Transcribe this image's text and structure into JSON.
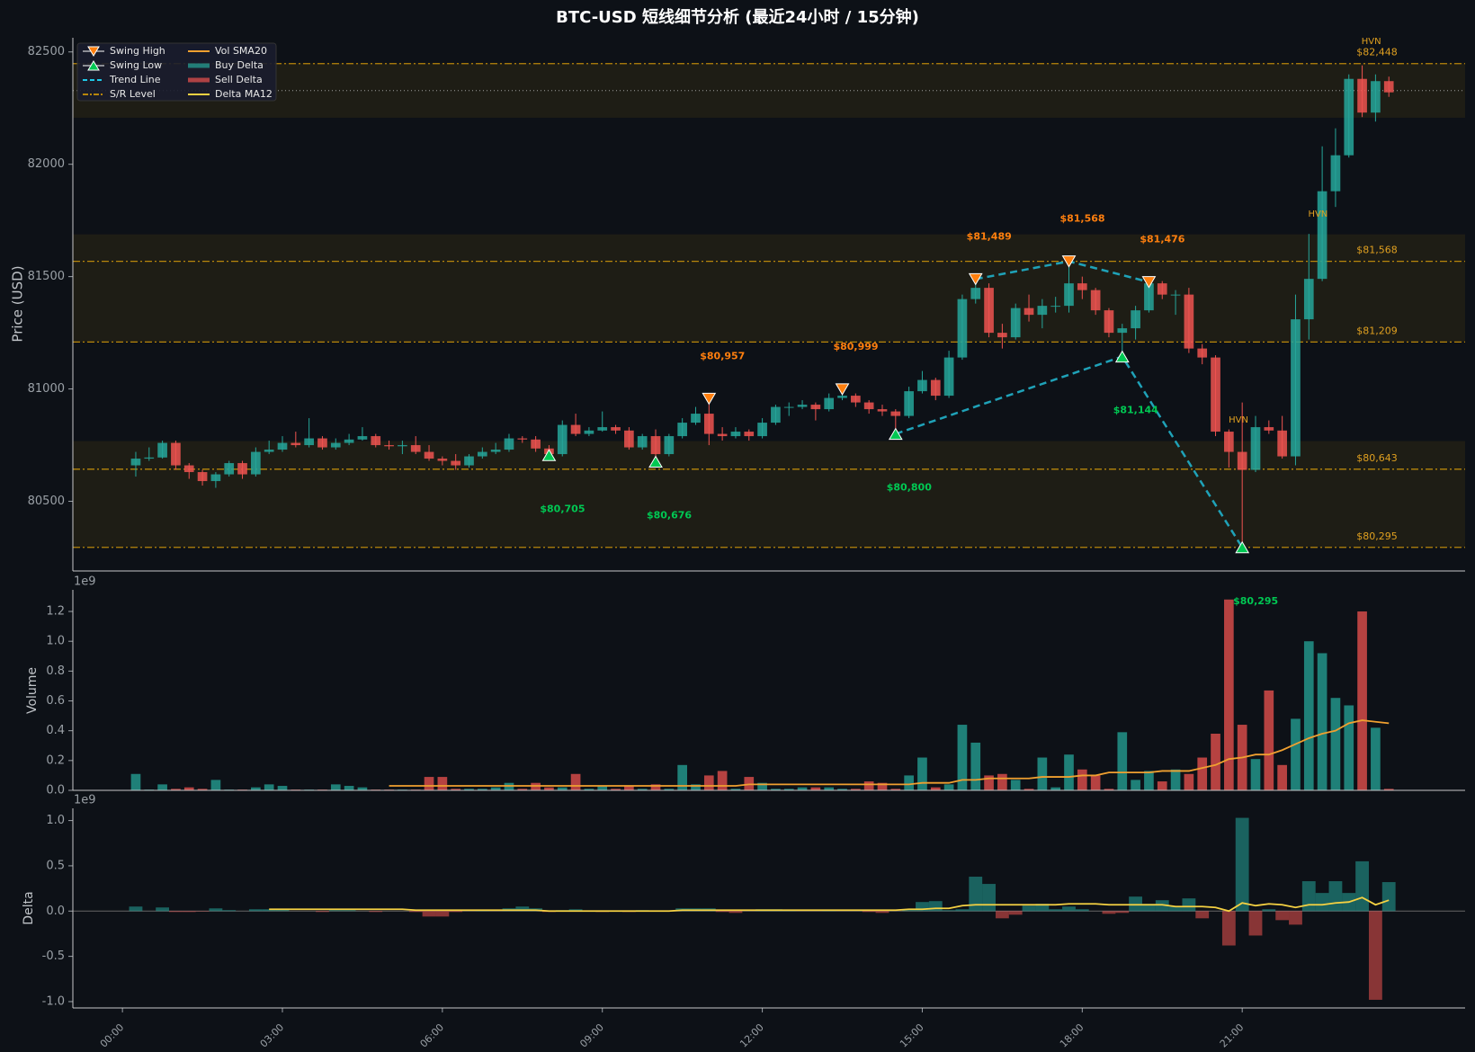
{
  "chart_data": {
    "type": "candlestick",
    "title": "BTC-USD 短线细节分析 (最近24小时 / 15分钟)",
    "ylabel": "Price (USD)",
    "vol_label": "Volume",
    "delta_label": "Delta",
    "vol_offset": "1e9",
    "delta_offset": "1e9",
    "xlim": [
      -0.93,
      25.18
    ],
    "xticks": [
      {
        "value": 0,
        "label": "00:00"
      },
      {
        "value": 3,
        "label": "03:00"
      },
      {
        "value": 6,
        "label": "06:00"
      },
      {
        "value": 9,
        "label": "09:00"
      },
      {
        "value": 12,
        "label": "12:00"
      },
      {
        "value": 15,
        "label": "15:00"
      },
      {
        "value": 18,
        "label": "18:00"
      },
      {
        "value": 21,
        "label": "21:00"
      }
    ],
    "ylim": [
      80190,
      82563
    ],
    "yticks": [
      80500,
      81000,
      81500,
      82000,
      82500
    ],
    "vol_ylim": [
      0,
      1.345
    ],
    "vol_yticks": [
      {
        "value": 0,
        "label": "0.0"
      },
      0.2,
      0.4,
      0.6,
      0.8,
      {
        "value": 1,
        "label": "1.0"
      },
      1.2
    ],
    "delta_ylim": [
      -1.07,
      1.135
    ],
    "delta_yticks": [
      {
        "value": -1,
        "label": "-1.0"
      },
      -0.5,
      {
        "value": 0,
        "label": "0.0"
      },
      0.5,
      {
        "value": 1,
        "label": "1.0"
      }
    ],
    "up_color": "#26a69a",
    "down_color": "#ef5350",
    "x": [
      0.25,
      0.5,
      0.75,
      1,
      1.25,
      1.5,
      1.75,
      2,
      2.25,
      2.5,
      2.75,
      3,
      3.25,
      3.5,
      3.75,
      4,
      4.25,
      4.5,
      4.75,
      5,
      5.25,
      5.5,
      5.75,
      6,
      6.25,
      6.5,
      6.75,
      7,
      7.25,
      7.5,
      7.75,
      8,
      8.25,
      8.5,
      8.75,
      9,
      9.25,
      9.5,
      9.75,
      10,
      10.25,
      10.5,
      10.75,
      11,
      11.25,
      11.5,
      11.75,
      12,
      12.25,
      12.5,
      12.75,
      13,
      13.25,
      13.5,
      13.75,
      14,
      14.25,
      14.5,
      14.75,
      15,
      15.25,
      15.5,
      15.75,
      16,
      16.25,
      16.5,
      16.75,
      17,
      17.25,
      17.5,
      17.75,
      18,
      18.25,
      18.5,
      18.75,
      19,
      19.25,
      19.5,
      19.75,
      20,
      20.25,
      20.5,
      20.75,
      21,
      21.25,
      21.5,
      21.75,
      22,
      22.25,
      22.5,
      22.75,
      23,
      23.25,
      23.5,
      23.75
    ],
    "open": [
      80660,
      80690,
      80695,
      80760,
      80660,
      80630,
      80590,
      80620,
      80670,
      80620,
      80720,
      80730,
      80760,
      80750,
      80780,
      80740,
      80760,
      80775,
      80790,
      80750,
      80745,
      80750,
      80720,
      80690,
      80680,
      80660,
      80700,
      80720,
      80730,
      80780,
      80775,
      80735,
      80710,
      80840,
      80800,
      80815,
      80830,
      80815,
      80740,
      80790,
      80710,
      80790,
      80850,
      80890,
      80800,
      80790,
      80810,
      80790,
      80850,
      80920,
      80920,
      80930,
      80910,
      80960,
      80970,
      80940,
      80910,
      80900,
      80880,
      80990,
      81040,
      80970,
      81140,
      81400,
      81450,
      81250,
      81230,
      81360,
      81330,
      81370,
      81370,
      81470,
      81440,
      81350,
      81250,
      81270,
      81350,
      81470,
      81420,
      81420,
      81180,
      81140,
      80810,
      80720,
      80640,
      80830,
      80815,
      80700,
      81310,
      81490,
      81880,
      82040,
      82380,
      82230,
      82370
    ],
    "high": [
      80720,
      80740,
      80770,
      80770,
      80670,
      80640,
      80630,
      80680,
      80680,
      80740,
      80770,
      80790,
      80810,
      80870,
      80790,
      80780,
      80800,
      80830,
      80800,
      80770,
      80770,
      80790,
      80750,
      80700,
      80710,
      80710,
      80740,
      80760,
      80800,
      80790,
      80790,
      80750,
      80860,
      80890,
      80830,
      80900,
      80840,
      80830,
      80800,
      80820,
      80800,
      80870,
      80920,
      80957,
      80830,
      80830,
      80820,
      80870,
      80930,
      80940,
      80950,
      80940,
      80980,
      80999,
      80980,
      80950,
      80930,
      80910,
      81010,
      81080,
      81050,
      81170,
      81420,
      81489,
      81470,
      81290,
      81380,
      81420,
      81400,
      81410,
      81568,
      81500,
      81450,
      81360,
      81290,
      81370,
      81476,
      81480,
      81440,
      81450,
      81200,
      81150,
      80820,
      80940,
      80880,
      80860,
      80880,
      81420,
      81690,
      82080,
      82160,
      82400,
      82440,
      82400,
      82390
    ],
    "low": [
      80610,
      80680,
      80690,
      80640,
      80600,
      80570,
      80560,
      80610,
      80600,
      80610,
      80710,
      80720,
      80740,
      80740,
      80730,
      80730,
      80750,
      80770,
      80740,
      80730,
      80710,
      80710,
      80680,
      80660,
      80640,
      80650,
      80690,
      80710,
      80720,
      80760,
      80720,
      80705,
      80700,
      80790,
      80790,
      80810,
      80800,
      80730,
      80730,
      80676,
      80700,
      80780,
      80840,
      80750,
      80770,
      80780,
      80770,
      80780,
      80840,
      80880,
      80910,
      80860,
      80900,
      80950,
      80920,
      80890,
      80880,
      80800,
      80870,
      80980,
      80950,
      80960,
      81130,
      81380,
      81230,
      81180,
      81220,
      81300,
      81270,
      81340,
      81340,
      81400,
      81330,
      81230,
      81144,
      81220,
      81340,
      81400,
      81330,
      81160,
      81110,
      80790,
      80650,
      80295,
      80630,
      80800,
      80690,
      80660,
      81220,
      81480,
      81810,
      82030,
      82210,
      82190,
      82300
    ],
    "close": [
      80690,
      80695,
      80760,
      80660,
      80630,
      80590,
      80620,
      80670,
      80620,
      80720,
      80730,
      80760,
      80750,
      80780,
      80740,
      80760,
      80775,
      80790,
      80750,
      80745,
      80750,
      80720,
      80690,
      80680,
      80660,
      80700,
      80720,
      80730,
      80780,
      80775,
      80735,
      80710,
      80840,
      80800,
      80815,
      80830,
      80815,
      80740,
      80790,
      80710,
      80790,
      80850,
      80890,
      80800,
      80790,
      80810,
      80790,
      80850,
      80920,
      80920,
      80930,
      80910,
      80960,
      80970,
      80940,
      80910,
      80900,
      80880,
      80990,
      81040,
      80970,
      81140,
      81400,
      81450,
      81250,
      81230,
      81360,
      81330,
      81370,
      81370,
      81470,
      81440,
      81350,
      81250,
      81270,
      81350,
      81470,
      81420,
      81420,
      81180,
      81140,
      80810,
      80720,
      80640,
      80830,
      80815,
      80700,
      81310,
      81490,
      81880,
      82040,
      82380,
      82230,
      82370,
      82320
    ],
    "volume": [
      0.11,
      0.005,
      0.04,
      0.01,
      0.02,
      0.01,
      0.07,
      0.005,
      0.005,
      0.02,
      0.04,
      0.03,
      0.005,
      0.005,
      0.005,
      0.04,
      0.03,
      0.02,
      0.005,
      0.005,
      0.005,
      0.005,
      0.09,
      0.09,
      0.01,
      0.01,
      0.01,
      0.02,
      0.05,
      0.01,
      0.05,
      0.02,
      0.02,
      0.11,
      0.01,
      0.03,
      0.01,
      0.03,
      0.01,
      0.04,
      0.01,
      0.17,
      0.04,
      0.1,
      0.13,
      0.01,
      0.09,
      0.05,
      0.01,
      0.01,
      0.02,
      0.02,
      0.02,
      0.01,
      0.01,
      0.06,
      0.05,
      0.01,
      0.1,
      0.22,
      0.02,
      0.04,
      0.44,
      0.32,
      0.1,
      0.11,
      0.07,
      0.01,
      0.22,
      0.02,
      0.24,
      0.14,
      0.1,
      0.01,
      0.39,
      0.07,
      0.13,
      0.06,
      0.14,
      0.11,
      0.22,
      0.38,
      1.28,
      0.44,
      0.21,
      0.67,
      0.17,
      0.48,
      1.0,
      0.92,
      0.62,
      0.57,
      1.2,
      0.42,
      0.01
    ],
    "vol_sma": [
      null,
      null,
      null,
      null,
      null,
      null,
      null,
      null,
      null,
      null,
      null,
      null,
      null,
      null,
      null,
      null,
      null,
      null,
      null,
      0.03,
      0.03,
      0.03,
      0.03,
      0.03,
      0.03,
      0.03,
      0.03,
      0.03,
      0.03,
      0.03,
      0.03,
      0.03,
      0.03,
      0.03,
      0.03,
      0.03,
      0.03,
      0.03,
      0.03,
      0.03,
      0.03,
      0.03,
      0.03,
      0.03,
      0.03,
      0.03,
      0.04,
      0.04,
      0.04,
      0.04,
      0.04,
      0.04,
      0.04,
      0.04,
      0.04,
      0.04,
      0.04,
      0.04,
      0.04,
      0.05,
      0.05,
      0.05,
      0.07,
      0.07,
      0.08,
      0.08,
      0.08,
      0.08,
      0.09,
      0.09,
      0.09,
      0.1,
      0.1,
      0.12,
      0.12,
      0.12,
      0.12,
      0.13,
      0.13,
      0.13,
      0.15,
      0.17,
      0.21,
      0.22,
      0.24,
      0.24,
      0.27,
      0.31,
      0.35,
      0.38,
      0.4,
      0.45,
      0.47,
      0.46,
      0.45
    ],
    "vol_sma_color": "#f0a030",
    "delta": [
      0.05,
      0,
      0.04,
      -0.01,
      -0.01,
      -0.005,
      0.03,
      0.01,
      0,
      0.02,
      0.02,
      0.02,
      0,
      0,
      -0.01,
      0.01,
      0.01,
      0,
      -0.01,
      0,
      0,
      -0.01,
      -0.06,
      -0.06,
      -0.01,
      0,
      0.01,
      0,
      0.03,
      0.05,
      0.03,
      -0.01,
      0.01,
      0.02,
      0,
      -0.01,
      0,
      -0.01,
      0.01,
      0,
      0,
      0.03,
      0.03,
      0.03,
      -0.01,
      -0.02,
      0,
      0.02,
      0.02,
      0.01,
      0,
      0,
      0.01,
      0,
      0,
      -0.01,
      -0.02,
      0,
      0.02,
      0.1,
      0.11,
      0.01,
      0.02,
      0.38,
      0.3,
      -0.08,
      -0.04,
      0.06,
      0.08,
      0.02,
      0.05,
      0.02,
      0,
      -0.03,
      -0.02,
      0.16,
      0.08,
      0.12,
      0.05,
      0.14,
      -0.08,
      0,
      -0.38,
      1.03,
      -0.27,
      0.02,
      -0.1,
      -0.15,
      0.33,
      0.2,
      0.33,
      0.2,
      0.55,
      -0.98,
      0.32
    ],
    "delta_ma": [
      null,
      null,
      null,
      null,
      null,
      null,
      null,
      null,
      null,
      null,
      0.02,
      0.02,
      0.02,
      0.02,
      0.02,
      0.02,
      0.02,
      0.02,
      0.02,
      0.02,
      0.02,
      0.01,
      0.01,
      0.01,
      0.01,
      0.01,
      0.01,
      0.01,
      0.01,
      0.01,
      0.01,
      0,
      0,
      0,
      0,
      0,
      0,
      0,
      0,
      0,
      0,
      0.01,
      0.01,
      0.01,
      0.01,
      0.01,
      0.01,
      0.01,
      0.01,
      0.01,
      0.01,
      0.01,
      0.01,
      0.01,
      0.01,
      0.01,
      0.01,
      0.01,
      0.02,
      0.02,
      0.03,
      0.03,
      0.06,
      0.07,
      0.07,
      0.07,
      0.07,
      0.07,
      0.07,
      0.07,
      0.08,
      0.08,
      0.08,
      0.07,
      0.07,
      0.07,
      0.07,
      0.07,
      0.05,
      0.05,
      0.05,
      0.04,
      0,
      0.09,
      0.06,
      0.08,
      0.07,
      0.04,
      0.07,
      0.07,
      0.09,
      0.1,
      0.15,
      0.07,
      0.12
    ],
    "delta_ma_color": "#f5d142",
    "zones": [
      [
        82207,
        82450
      ],
      [
        81209,
        81688
      ],
      [
        80295,
        80768
      ]
    ],
    "reference_line": 82328,
    "sr_levels": [
      {
        "price": 82448,
        "label": "$82,448"
      },
      {
        "price": 81568,
        "label": "$81,568"
      },
      {
        "price": 81209,
        "label": "$81,209"
      },
      {
        "price": 80643,
        "label": "$80,643"
      },
      {
        "price": 80295,
        "label": "$80,295"
      }
    ],
    "sr_color": "#b8860b",
    "hvn": [
      {
        "label": "HVN",
        "x": 23.42,
        "price": 82546
      },
      {
        "label": "HVN",
        "x": 22.42,
        "price": 81778
      },
      {
        "label": "HVN",
        "x": 20.93,
        "price": 80862
      }
    ],
    "swing_highs": [
      {
        "x": 11,
        "price": 80957,
        "label": "$80,957"
      },
      {
        "x": 13.5,
        "price": 80999,
        "label": "$80,999"
      },
      {
        "x": 16,
        "price": 81489,
        "label": "$81,489"
      },
      {
        "x": 17.75,
        "price": 81568,
        "label": "$81,568"
      },
      {
        "x": 19.25,
        "price": 81476,
        "label": "$81,476"
      }
    ],
    "swing_lows": [
      {
        "x": 8,
        "price": 80705,
        "label": "$80,705"
      },
      {
        "x": 10,
        "price": 80676,
        "label": "$80,676"
      },
      {
        "x": 14.5,
        "price": 80800,
        "label": "$80,800"
      },
      {
        "x": 18.75,
        "price": 81144,
        "label": "$81,144"
      },
      {
        "x": 21,
        "price": 80295,
        "label": "$80,295"
      }
    ],
    "high_color": "#ff7f0e",
    "low_color": "#00c853",
    "trend_color": "#1fa2b8",
    "legend": [
      {
        "label": "Swing High",
        "style": "down",
        "color": "#ff7f0e"
      },
      {
        "label": "Swing Low",
        "style": "up",
        "color": "#00c853"
      },
      {
        "label": "Trend Line",
        "style": "dash",
        "color": "#1fc8e8"
      },
      {
        "label": "S/R Level",
        "style": "dashdot",
        "color": "#b8860b"
      },
      {
        "label": "Vol SMA20",
        "style": "line",
        "color": "#f0a030"
      },
      {
        "label": "Buy Delta",
        "style": "band",
        "color": "#26a69a"
      },
      {
        "label": "Sell Delta",
        "style": "band",
        "color": "#ef5350"
      },
      {
        "label": "Delta MA12",
        "style": "line",
        "color": "#f5d142"
      }
    ]
  }
}
